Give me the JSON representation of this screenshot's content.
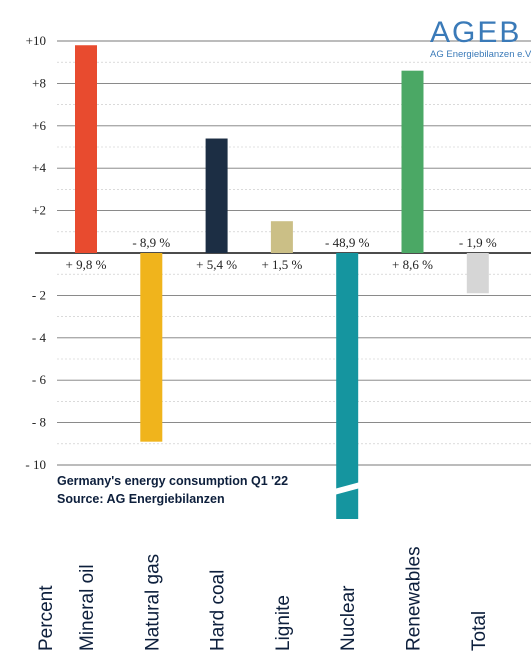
{
  "logo": {
    "main": "AGEB",
    "sub": "AG Energiebilanzen e.V."
  },
  "caption": {
    "line1": "Germany's energy consumption Q1 '22",
    "line2": "Source: AG Energiebilanzen"
  },
  "chart_data": {
    "type": "bar",
    "title": "Germany's energy consumption Q1 '22",
    "subtitle": "Source: AG Energiebilanzen",
    "ylabel": "Percent",
    "xlabel": "",
    "ylim": [
      -10,
      10
    ],
    "y_ticks": [
      10,
      8,
      6,
      4,
      2,
      -2,
      -4,
      -6,
      -8,
      -10
    ],
    "y_tick_labels": [
      "+10",
      "+8",
      "+6",
      "+4",
      "+2",
      "- 2",
      "- 4",
      "- 6",
      "- 8",
      "- 10"
    ],
    "grid": true,
    "categories": [
      "Mineral oil",
      "Natural gas",
      "Hard coal",
      "Lignite",
      "Nuclear",
      "Renewables",
      "Total"
    ],
    "values": [
      9.8,
      -8.9,
      5.4,
      1.5,
      -48.9,
      8.6,
      -1.9
    ],
    "value_labels": [
      "+ 9,8 %",
      "- 8,9 %",
      "+ 5,4 %",
      "+ 1,5 %",
      "- 48,9 %",
      "+ 8,6 %",
      "- 1,9 %"
    ],
    "colors": [
      "#e84b2f",
      "#f0b41c",
      "#1c2e44",
      "#cbbf86",
      "#15959f",
      "#4ba865",
      "#d6d6d6"
    ],
    "axis_break": {
      "category": "Nuclear"
    }
  }
}
